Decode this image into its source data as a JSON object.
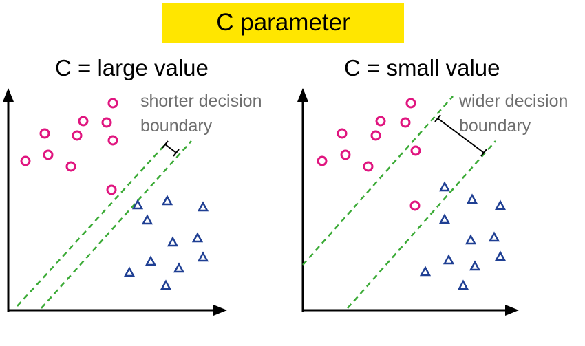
{
  "title": {
    "text": "C parameter",
    "background": "#ffe600"
  },
  "colors": {
    "circle": "#e0157f",
    "triangle": "#1f3f93",
    "boundary": "#3aaa35",
    "axis": "#000000",
    "note_text": "#6e6e6e"
  },
  "panels": [
    {
      "title": "C = large value",
      "note_line1": "shorter decision",
      "note_line2": "boundary",
      "circle_icon": "circle-marker",
      "triangle_icon": "triangle-marker"
    },
    {
      "title": "C = small value",
      "note_line1": "wider decision",
      "note_line2": "boundary",
      "circle_icon": "circle-marker",
      "triangle_icon": "triangle-marker"
    }
  ]
}
